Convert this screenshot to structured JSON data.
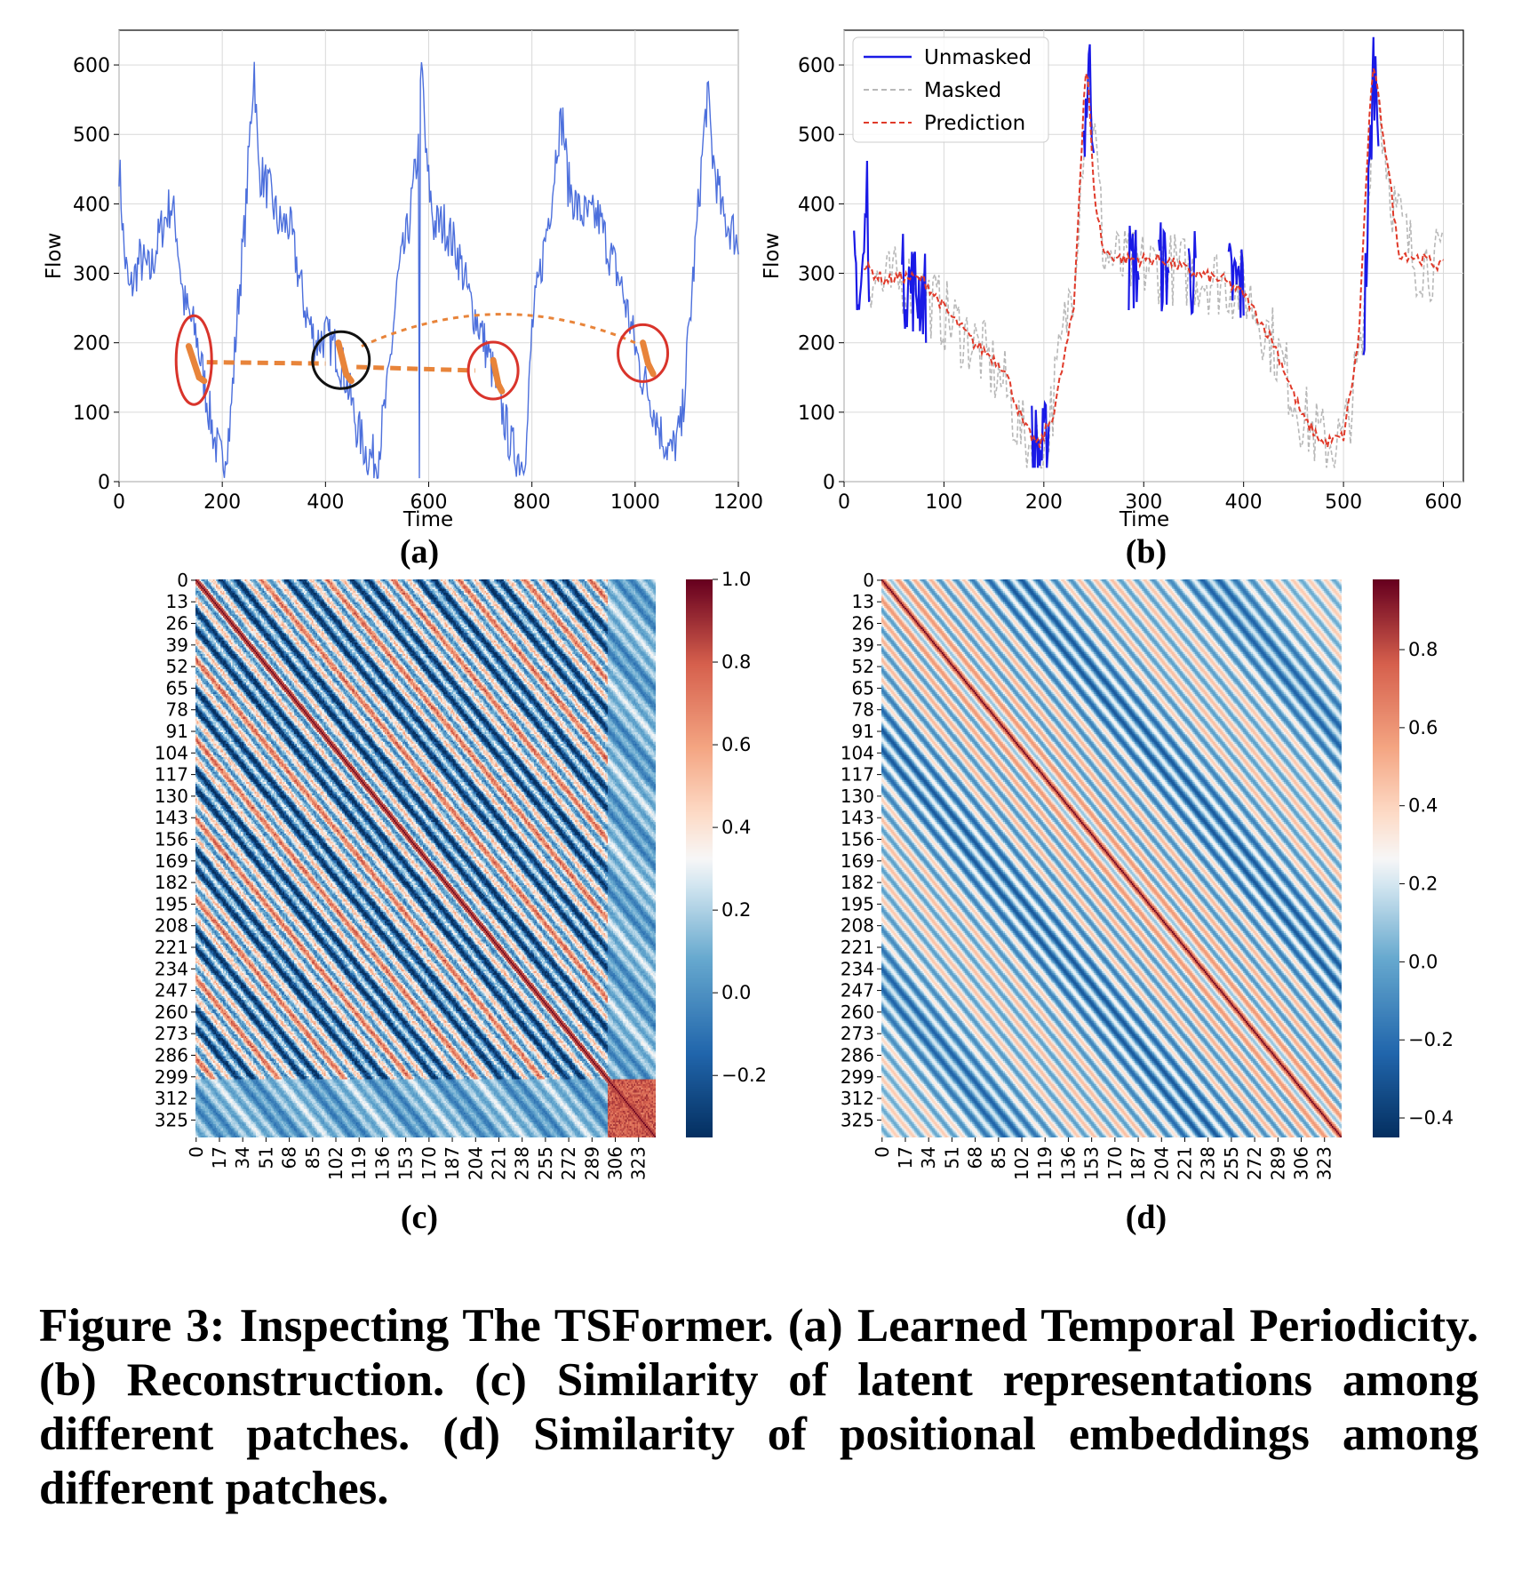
{
  "figure": {
    "panel_labels": [
      "(a)",
      "(b)",
      "(c)",
      "(d)"
    ],
    "caption": "Figure 3: Inspecting The TSFormer. (a) Learned Temporal Periodicity. (b) Reconstruction. (c) Similarity of latent representations among different patches. (d) Similarity of positional embeddings among different patches."
  },
  "colors": {
    "flow_line_a": "#4c6fdc",
    "unmasked": "#1a1ae6",
    "masked": "#b8b8b8",
    "prediction": "#e03a2a",
    "highlight_orange": "#e8843a",
    "circle_red": "#d9342b",
    "circle_black": "#111111",
    "grid": "#d9d9d9"
  },
  "chart_data": [
    {
      "id": "a",
      "type": "line",
      "xlabel": "Time",
      "ylabel": "Flow",
      "xlim": [
        0,
        1200
      ],
      "ylim": [
        0,
        650
      ],
      "xticks": [
        0,
        200,
        400,
        600,
        800,
        1000,
        1200
      ],
      "yticks": [
        0,
        100,
        200,
        300,
        400,
        500,
        600
      ],
      "grid": true,
      "series": [
        {
          "keypoints": [
            [
              0,
              460
            ],
            [
              10,
              330
            ],
            [
              20,
              270
            ],
            [
              40,
              320
            ],
            [
              60,
              300
            ],
            [
              80,
              360
            ],
            [
              100,
              400
            ],
            [
              110,
              370
            ],
            [
              125,
              260
            ],
            [
              150,
              210
            ],
            [
              170,
              120
            ],
            [
              185,
              60
            ],
            [
              200,
              25
            ],
            [
              215,
              80
            ],
            [
              230,
              250
            ],
            [
              245,
              380
            ],
            [
              255,
              520
            ],
            [
              262,
              600
            ],
            [
              270,
              450
            ],
            [
              290,
              420
            ],
            [
              310,
              370
            ],
            [
              330,
              370
            ],
            [
              345,
              310
            ],
            [
              360,
              250
            ],
            [
              380,
              200
            ],
            [
              400,
              210
            ],
            [
              420,
              190
            ],
            [
              440,
              150
            ],
            [
              460,
              80
            ],
            [
              480,
              40
            ],
            [
              500,
              30
            ],
            [
              520,
              130
            ],
            [
              540,
              290
            ],
            [
              560,
              360
            ],
            [
              580,
              480
            ],
            [
              587,
              600
            ],
            [
              595,
              460
            ],
            [
              610,
              370
            ],
            [
              630,
              370
            ],
            [
              650,
              340
            ],
            [
              660,
              320
            ],
            [
              680,
              260
            ],
            [
              700,
              220
            ],
            [
              720,
              170
            ],
            [
              740,
              110
            ],
            [
              760,
              50
            ],
            [
              780,
              30
            ],
            [
              790,
              60
            ],
            [
              800,
              220
            ],
            [
              820,
              320
            ],
            [
              840,
              420
            ],
            [
              850,
              500
            ],
            [
              860,
              520
            ],
            [
              870,
              430
            ],
            [
              890,
              390
            ],
            [
              910,
              380
            ],
            [
              930,
              380
            ],
            [
              950,
              330
            ],
            [
              970,
              290
            ],
            [
              990,
              230
            ],
            [
              1010,
              160
            ],
            [
              1030,
              120
            ],
            [
              1050,
              70
            ],
            [
              1070,
              40
            ],
            [
              1090,
              80
            ],
            [
              1110,
              270
            ],
            [
              1130,
              470
            ],
            [
              1140,
              560
            ],
            [
              1150,
              470
            ],
            [
              1170,
              380
            ],
            [
              1190,
              360
            ],
            [
              1200,
              340
            ]
          ]
        }
      ],
      "annotations": {
        "highlight_segments": [
          [
            [
              135,
              195
            ],
            [
              155,
              150
            ],
            [
              165,
              145
            ]
          ],
          [
            [
              425,
              200
            ],
            [
              440,
              155
            ],
            [
              450,
              145
            ]
          ],
          [
            [
              725,
              175
            ],
            [
              735,
              140
            ],
            [
              742,
              130
            ]
          ],
          [
            [
              1015,
              200
            ],
            [
              1025,
              170
            ],
            [
              1035,
              155
            ]
          ]
        ],
        "circles_red_at": [
          [
            145,
            175
          ],
          [
            725,
            160
          ],
          [
            1015,
            185
          ]
        ],
        "circle_black_at": [
          430,
          175
        ],
        "links": [
          [
            [
              170,
              172
            ],
            [
              400,
              170
            ]
          ],
          [
            [
              460,
              165
            ],
            [
              690,
              160
            ]
          ],
          [
            [
              470,
              195
            ],
            [
              1000,
              200
            ]
          ]
        ]
      }
    },
    {
      "id": "b",
      "type": "line",
      "xlabel": "Time",
      "ylabel": "Flow",
      "xlim": [
        0,
        620
      ],
      "ylim": [
        0,
        650
      ],
      "xticks": [
        0,
        100,
        200,
        300,
        400,
        500,
        600
      ],
      "yticks": [
        0,
        100,
        200,
        300,
        400,
        500,
        600
      ],
      "grid": true,
      "legend": "top-left",
      "series": [
        {
          "name": "Unmasked",
          "style": "solid",
          "keypoints": [
            [
              10,
              340
            ],
            [
              15,
              250
            ],
            [
              20,
              330
            ],
            [
              23,
              430
            ],
            [
              25,
              300
            ]
          ]
        },
        {
          "name": "Masked",
          "style": "dashed",
          "keypoints": [
            [
              25,
              300
            ],
            [
              40,
              280
            ],
            [
              60,
              290
            ],
            [
              80,
              270
            ],
            [
              100,
              240
            ],
            [
              130,
              200
            ],
            [
              160,
              140
            ],
            [
              180,
              60
            ],
            [
              200,
              40
            ],
            [
              230,
              300
            ],
            [
              245,
              600
            ],
            [
              260,
              330
            ],
            [
              280,
              310
            ],
            [
              320,
              310
            ],
            [
              350,
              300
            ],
            [
              400,
              280
            ],
            [
              430,
              200
            ],
            [
              460,
              90
            ],
            [
              480,
              55
            ],
            [
              500,
              60
            ],
            [
              520,
              200
            ],
            [
              530,
              600
            ],
            [
              550,
              400
            ],
            [
              570,
              320
            ],
            [
              600,
              310
            ]
          ]
        },
        {
          "name": "Prediction",
          "style": "dashed",
          "keypoints": [
            [
              20,
              310
            ],
            [
              40,
              290
            ],
            [
              60,
              295
            ],
            [
              80,
              290
            ],
            [
              100,
              250
            ],
            [
              130,
              200
            ],
            [
              160,
              165
            ],
            [
              180,
              80
            ],
            [
              195,
              50
            ],
            [
              210,
              100
            ],
            [
              230,
              250
            ],
            [
              240,
              550
            ],
            [
              243,
              610
            ],
            [
              250,
              420
            ],
            [
              260,
              330
            ],
            [
              280,
              320
            ],
            [
              320,
              320
            ],
            [
              350,
              300
            ],
            [
              380,
              290
            ],
            [
              400,
              270
            ],
            [
              430,
              200
            ],
            [
              460,
              90
            ],
            [
              480,
              55
            ],
            [
              500,
              65
            ],
            [
              515,
              200
            ],
            [
              525,
              500
            ],
            [
              530,
              600
            ],
            [
              545,
              450
            ],
            [
              555,
              330
            ],
            [
              580,
              320
            ],
            [
              600,
              310
            ]
          ]
        }
      ]
    },
    {
      "id": "c",
      "type": "heatmap",
      "ticks": [
        0,
        13,
        26,
        39,
        52,
        65,
        78,
        91,
        104,
        117,
        130,
        143,
        156,
        169,
        182,
        195,
        208,
        221,
        234,
        247,
        260,
        273,
        286,
        299,
        312,
        325
      ],
      "xticks": [
        0,
        17,
        34,
        51,
        68,
        85,
        102,
        119,
        136,
        153,
        170,
        187,
        204,
        221,
        238,
        255,
        272,
        289,
        306,
        323
      ],
      "n": 336,
      "vmin": -0.35,
      "vmax": 1.0,
      "colorbar_ticks": [
        -0.2,
        0.0,
        0.2,
        0.4,
        0.6,
        0.8,
        1.0
      ],
      "colorbar_labels": [
        "−0.2",
        "0.0",
        "0.2",
        "0.4",
        "0.6",
        "0.8",
        "1.0"
      ],
      "colormap": "RdBu_r"
    },
    {
      "id": "d",
      "type": "heatmap",
      "ticks": [
        0,
        13,
        26,
        39,
        52,
        65,
        78,
        91,
        104,
        117,
        130,
        143,
        156,
        169,
        182,
        195,
        208,
        221,
        234,
        247,
        260,
        273,
        286,
        299,
        312,
        325
      ],
      "xticks": [
        0,
        17,
        34,
        51,
        68,
        85,
        102,
        119,
        136,
        153,
        170,
        187,
        204,
        221,
        238,
        255,
        272,
        289,
        306,
        323
      ],
      "n": 336,
      "vmin": -0.45,
      "vmax": 0.98,
      "colorbar_ticks": [
        -0.4,
        -0.2,
        0.0,
        0.2,
        0.4,
        0.6,
        0.8
      ],
      "colorbar_labels": [
        "−0.4",
        "−0.2",
        "0.0",
        "0.2",
        "0.4",
        "0.6",
        "0.8"
      ],
      "colormap": "RdBu_r"
    }
  ]
}
